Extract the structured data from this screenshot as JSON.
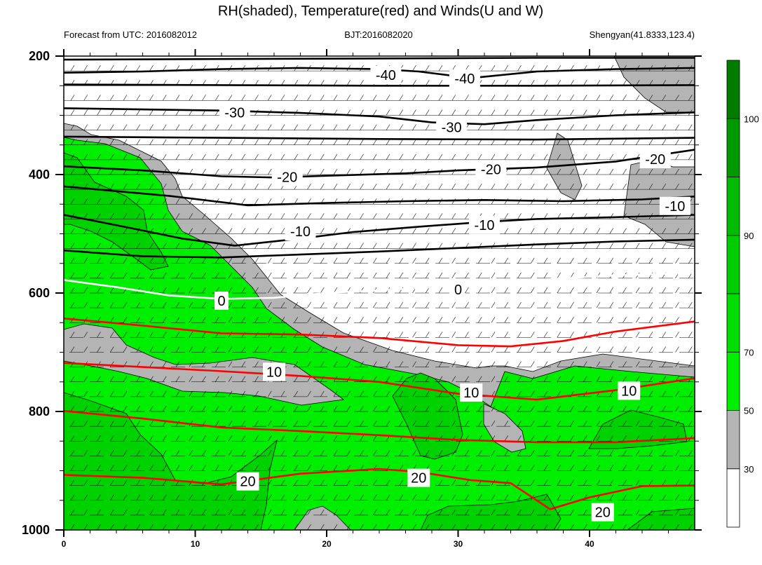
{
  "chart_data": {
    "type": "contour",
    "title": "RH(shaded), Temperature(red) and Winds(U and W)",
    "subtitle_left": "Forecast from UTC: 2016082012",
    "subtitle_center": "BJT:2016082020",
    "subtitle_right": "Shengyan(41.8333,123.4)",
    "x": {
      "range": [
        0,
        48
      ],
      "ticks": [
        0,
        10,
        20,
        30,
        40
      ]
    },
    "y": {
      "range": [
        1000,
        200
      ],
      "ticks": [
        200,
        400,
        600,
        800,
        1000
      ],
      "reversed": true
    },
    "colorbar": {
      "ticks": [
        30,
        50,
        70,
        90,
        100
      ],
      "colors": [
        "#ffffff",
        "#b4b4b4",
        "#00ee00",
        "#00dd00",
        "#00cd00",
        "#00bb00",
        "#009a00",
        "#007d00"
      ],
      "band_edges": [
        0,
        30,
        50,
        70,
        80,
        90,
        95,
        100,
        110
      ]
    },
    "temperature_contours": [
      {
        "label": "-40",
        "color": "#000000",
        "points": [
          [
            0,
            228
          ],
          [
            6,
            226
          ],
          [
            12,
            222
          ],
          [
            18,
            220
          ],
          [
            24,
            222
          ],
          [
            27,
            226
          ],
          [
            31,
            237
          ],
          [
            36,
            226
          ],
          [
            42,
            222
          ],
          [
            48,
            220
          ]
        ],
        "labels": [
          [
            24.5,
            232
          ],
          [
            30.5,
            238
          ]
        ]
      },
      {
        "label": "-30",
        "color": "#000000",
        "points": [
          [
            0,
            288
          ],
          [
            6,
            290
          ],
          [
            12,
            292
          ],
          [
            18,
            296
          ],
          [
            24,
            302
          ],
          [
            28,
            312
          ],
          [
            32,
            315
          ],
          [
            36,
            308
          ],
          [
            42,
            300
          ],
          [
            48,
            295
          ]
        ],
        "labels": [
          [
            13,
            295
          ],
          [
            29.5,
            320
          ]
        ]
      },
      {
        "label": "-20",
        "color": "#000000",
        "points": [
          [
            0,
            386
          ],
          [
            6,
            393
          ],
          [
            12,
            403
          ],
          [
            16,
            405
          ],
          [
            20,
            402
          ],
          [
            26,
            398
          ],
          [
            30,
            393
          ],
          [
            36,
            388
          ],
          [
            42,
            378
          ],
          [
            48,
            358
          ]
        ],
        "labels": [
          [
            17,
            404
          ],
          [
            32.5,
            391
          ],
          [
            45,
            374
          ]
        ]
      },
      {
        "label": "-10",
        "color": "#000000",
        "points": [
          [
            0,
            468
          ],
          [
            5,
            490
          ],
          [
            9,
            508
          ],
          [
            13,
            520
          ],
          [
            18,
            508
          ],
          [
            22,
            497
          ],
          [
            27,
            488
          ],
          [
            32,
            480
          ],
          [
            36,
            475
          ],
          [
            42,
            472
          ],
          [
            48,
            468
          ]
        ],
        "labels": [
          [
            18,
            496
          ],
          [
            32,
            485
          ],
          [
            46.5,
            453
          ]
        ]
      },
      {
        "label": "0",
        "color": "#ffffff",
        "points": [
          [
            0,
            578
          ],
          [
            4,
            590
          ],
          [
            8,
            604
          ],
          [
            12,
            610
          ],
          [
            16,
            608
          ],
          [
            20,
            600
          ],
          [
            26,
            593
          ],
          [
            31,
            586
          ],
          [
            36,
            578
          ],
          [
            42,
            570
          ],
          [
            48,
            566
          ]
        ],
        "labels": [
          [
            12,
            613
          ],
          [
            30,
            594
          ]
        ]
      },
      {
        "label": "10",
        "color": "#ff0000",
        "points": [
          [
            0,
            718
          ],
          [
            6,
            725
          ],
          [
            12,
            732
          ],
          [
            18,
            740
          ],
          [
            24,
            750
          ],
          [
            30,
            770
          ],
          [
            36,
            780
          ],
          [
            42,
            764
          ],
          [
            48,
            744
          ]
        ],
        "labels": [
          [
            16,
            733
          ],
          [
            31,
            768
          ],
          [
            43,
            765
          ]
        ]
      },
      {
        "label": "20",
        "color": "#ff0000",
        "points": [
          [
            0,
            907
          ],
          [
            6,
            912
          ],
          [
            12,
            923
          ],
          [
            18,
            905
          ],
          [
            24,
            897
          ],
          [
            27,
            902
          ],
          [
            31,
            916
          ],
          [
            34,
            921
          ],
          [
            37,
            965
          ],
          [
            40,
            945
          ],
          [
            44,
            926
          ],
          [
            48,
            925
          ]
        ],
        "labels": [
          [
            14,
            918
          ],
          [
            27,
            912
          ],
          [
            41,
            970
          ]
        ]
      },
      {
        "label": "",
        "color": "#ff0000",
        "points": [
          [
            0,
            643
          ],
          [
            6,
            655
          ],
          [
            12,
            668
          ],
          [
            18,
            670
          ],
          [
            24,
            676
          ],
          [
            30,
            688
          ],
          [
            34,
            690
          ],
          [
            38,
            681
          ],
          [
            42,
            665
          ],
          [
            48,
            648
          ]
        ],
        "labels": []
      },
      {
        "label": "",
        "color": "#ff0000",
        "points": [
          [
            0,
            799
          ],
          [
            6,
            812
          ],
          [
            12,
            827
          ],
          [
            18,
            833
          ],
          [
            24,
            840
          ],
          [
            30,
            848
          ],
          [
            36,
            852
          ],
          [
            42,
            852
          ],
          [
            48,
            845
          ]
        ],
        "labels": []
      }
    ],
    "extra_black_isotherms": [
      [
        [
          0,
          206
        ],
        [
          12,
          205
        ],
        [
          24,
          204
        ],
        [
          36,
          203
        ],
        [
          48,
          203
        ]
      ],
      [
        [
          0,
          248
        ],
        [
          12,
          249
        ],
        [
          24,
          250
        ],
        [
          36,
          250
        ],
        [
          48,
          249
        ]
      ],
      [
        [
          0,
          336
        ],
        [
          12,
          338
        ],
        [
          24,
          340
        ],
        [
          36,
          341
        ],
        [
          48,
          338
        ]
      ],
      [
        [
          0,
          420
        ],
        [
          8,
          436
        ],
        [
          14,
          452
        ],
        [
          20,
          448
        ],
        [
          26,
          445
        ],
        [
          32,
          443
        ],
        [
          38,
          445
        ],
        [
          44,
          442
        ],
        [
          48,
          437
        ]
      ],
      [
        [
          0,
          528
        ],
        [
          6,
          538
        ],
        [
          12,
          540
        ],
        [
          18,
          535
        ],
        [
          24,
          530
        ],
        [
          30,
          524
        ],
        [
          36,
          518
        ],
        [
          42,
          513
        ],
        [
          48,
          510
        ]
      ]
    ]
  }
}
